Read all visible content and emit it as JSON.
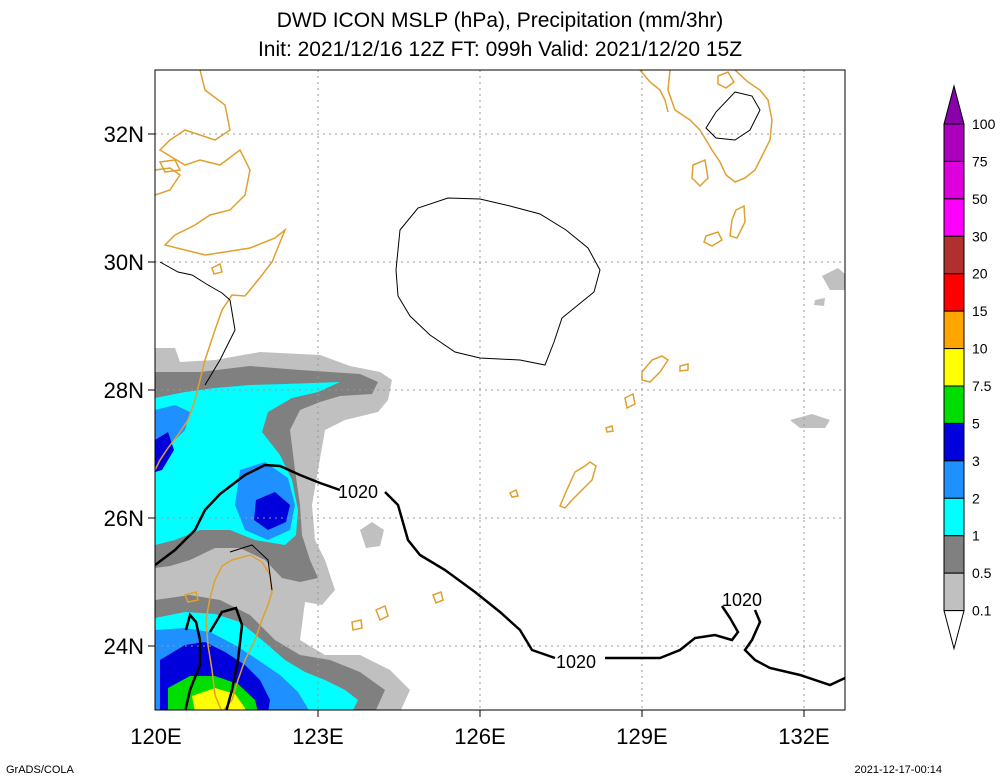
{
  "title": {
    "line1": "DWD ICON MSLP (hPa), Precipitation (mm/3hr)",
    "line2": "Init: 2021/12/16 12Z  FT: 099h  Valid: 2021/12/20 15Z"
  },
  "map": {
    "lat_labels": [
      "32N",
      "30N",
      "28N",
      "26N",
      "24N"
    ],
    "lon_labels": [
      "120E",
      "123E",
      "126E",
      "129E",
      "132E"
    ],
    "isobar_label": "1020",
    "colors": {
      "coast": "#e0a030",
      "grid": "#999999"
    }
  },
  "colorbar": {
    "labels": [
      "100",
      "75",
      "50",
      "30",
      "20",
      "15",
      "10",
      "7.5",
      "5",
      "3",
      "2",
      "1",
      "0.5",
      "0.1"
    ],
    "colors": [
      "#8800aa",
      "#aa00bb",
      "#dd00dd",
      "#ff00ff",
      "#b03030",
      "#ff0000",
      "#ffa500",
      "#ffff00",
      "#00dd00",
      "#0000dd",
      "#1e90ff",
      "#00ffff",
      "#808080",
      "#c0c0c0",
      "#ffffff"
    ]
  },
  "footer": {
    "left": "GrADS/COLA",
    "right": "2021-12-17-00:14"
  }
}
